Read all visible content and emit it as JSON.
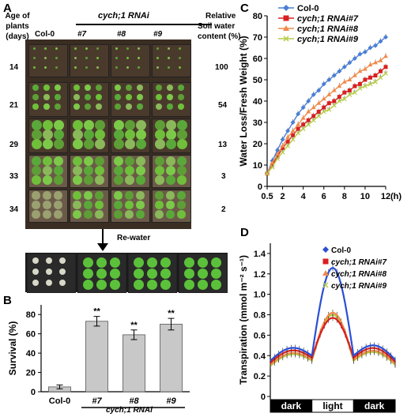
{
  "panelA": {
    "letter": "A",
    "age_header": [
      "Age of",
      "plants",
      "(days)"
    ],
    "rnai_header": "cych;1 RNAi",
    "soil_header": [
      "Relative",
      "Soil  water",
      "content (%)"
    ],
    "columns": [
      "Col-0",
      "#7",
      "#8",
      "#9"
    ],
    "rows": [
      {
        "age": "14",
        "water": "100"
      },
      {
        "age": "21",
        "water": "54"
      },
      {
        "age": "29",
        "water": "13"
      },
      {
        "age": "33",
        "water": "3"
      },
      {
        "age": "34",
        "water": "2"
      }
    ],
    "rewater_label": "Re-water"
  },
  "panelB": {
    "letter": "B",
    "chart_data": {
      "type": "bar",
      "categories": [
        "Col-0",
        "#7",
        "#8",
        "#9"
      ],
      "values": [
        5,
        73,
        59,
        70
      ],
      "errors": [
        2,
        5,
        5,
        6
      ],
      "significance": [
        "",
        "**",
        "**",
        "**"
      ],
      "ylabel": "Survival (%)",
      "yticks": [
        0,
        20,
        40,
        60,
        80
      ],
      "ylim": [
        0,
        90
      ],
      "group_label": "cych;1 RNAi"
    }
  },
  "panelC": {
    "letter": "C",
    "chart_data": {
      "type": "line",
      "x": [
        0.5,
        1,
        1.5,
        2,
        2.5,
        3,
        3.5,
        4,
        4.5,
        5,
        5.5,
        6,
        6.5,
        7,
        7.5,
        8,
        8.5,
        9,
        9.5,
        10,
        10.5,
        11,
        11.5,
        12
      ],
      "series": [
        {
          "name": "Col-0",
          "color": "#4a7fd4",
          "values": [
            6,
            12,
            17,
            22,
            26,
            30,
            34,
            37,
            40,
            43,
            45,
            48,
            50,
            52,
            54,
            56,
            58,
            60,
            62,
            63,
            65,
            66,
            68,
            70
          ]
        },
        {
          "name": "cych;1 RNAi#7",
          "color": "#d92020",
          "values": [
            6,
            10,
            14,
            18,
            21,
            24,
            27,
            29,
            31,
            33,
            35,
            37,
            39,
            40,
            42,
            44,
            45,
            47,
            48,
            50,
            51,
            52,
            54,
            56
          ]
        },
        {
          "name": "cych;1 RNAi#8",
          "color": "#f08a4b",
          "values": [
            6,
            11,
            15,
            19,
            23,
            26,
            29,
            32,
            35,
            37,
            39,
            41,
            43,
            45,
            47,
            49,
            50,
            52,
            54,
            55,
            57,
            58,
            59,
            61
          ]
        },
        {
          "name": "cych;1 RNAi#9",
          "color": "#b5cc4a",
          "values": [
            6,
            9,
            13,
            16,
            19,
            22,
            25,
            27,
            29,
            31,
            33,
            35,
            36,
            38,
            40,
            41,
            43,
            44,
            46,
            47,
            48,
            49,
            51,
            53
          ]
        }
      ],
      "ylabel": "Water Loss/Fresh Weight (%)",
      "xticks": [
        "0.5",
        "2",
        "4",
        "6",
        "8",
        "10",
        "12"
      ],
      "xtick_values": [
        0.5,
        2,
        4,
        6,
        8,
        10,
        12
      ],
      "yticks": [
        0,
        10,
        20,
        30,
        40,
        50,
        60,
        70,
        80
      ],
      "ylim": [
        0,
        80
      ],
      "xunit": "(h)",
      "legend_position": "top-left"
    }
  },
  "panelD": {
    "letter": "D",
    "chart_data": {
      "type": "line",
      "ylabel": "Transpiration (mmol m⁻² s⁻¹)",
      "yticks": [
        "0",
        "0.2",
        "0.4",
        "0.6",
        "0.8",
        "1.0",
        "1.2",
        "1.4"
      ],
      "ylim": [
        0,
        1.5
      ],
      "series": [
        {
          "name": "Col-0",
          "color": "#2a4fd6",
          "peak": 1.26,
          "dark": 0.4
        },
        {
          "name": "cych;1 RNAi#7",
          "color": "#d92020",
          "peak": 0.77,
          "dark": 0.38
        },
        {
          "name": "cych;1 RNAi#8",
          "color": "#f08a4b",
          "peak": 0.82,
          "dark": 0.36
        },
        {
          "name": "cych;1 RNAi#9",
          "color": "#b5cc4a",
          "peak": 0.8,
          "dark": 0.35
        }
      ],
      "periods": [
        "dark",
        "light",
        "dark"
      ],
      "legend_position": "top-right"
    }
  },
  "colors": {
    "bar_fill": "#c8c8c8",
    "photo_soil": "#4a3a2c",
    "plant_green": "#6fbf3a"
  }
}
